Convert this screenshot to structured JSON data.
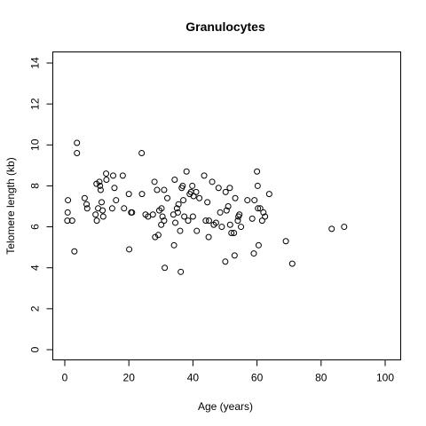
{
  "chart_data": {
    "type": "scatter",
    "title": "Granulocytes",
    "xlabel": "Age (years)",
    "ylabel": "Telomere length (kb)",
    "xlim": [
      0,
      100
    ],
    "ylim": [
      0,
      14
    ],
    "xticks": [
      0,
      20,
      40,
      60,
      80,
      100
    ],
    "yticks": [
      0,
      2,
      4,
      6,
      8,
      10,
      12,
      14
    ],
    "grid": false,
    "legend": "none",
    "points": [
      [
        0.8,
        6.3
      ],
      [
        0.9,
        6.7
      ],
      [
        1.0,
        7.3
      ],
      [
        2.3,
        6.3
      ],
      [
        3.0,
        4.8
      ],
      [
        3.8,
        10.1
      ],
      [
        3.8,
        9.6
      ],
      [
        6.2,
        7.4
      ],
      [
        6.8,
        7.1
      ],
      [
        7.0,
        6.9
      ],
      [
        9.6,
        6.6
      ],
      [
        9.9,
        8.1
      ],
      [
        10.0,
        6.3
      ],
      [
        10.4,
        6.9
      ],
      [
        10.8,
        8.2
      ],
      [
        11.0,
        8.0
      ],
      [
        11.2,
        7.8
      ],
      [
        11.5,
        7.2
      ],
      [
        11.8,
        6.8
      ],
      [
        12.0,
        6.5
      ],
      [
        12.9,
        8.6
      ],
      [
        13.0,
        8.3
      ],
      [
        14.8,
        6.9
      ],
      [
        15.1,
        8.5
      ],
      [
        15.5,
        7.9
      ],
      [
        16.0,
        7.3
      ],
      [
        18.1,
        8.5
      ],
      [
        18.5,
        6.9
      ],
      [
        20.0,
        7.6
      ],
      [
        20.1,
        4.9
      ],
      [
        20.7,
        6.7
      ],
      [
        21.0,
        6.7
      ],
      [
        24.0,
        9.6
      ],
      [
        24.1,
        7.6
      ],
      [
        25.2,
        6.6
      ],
      [
        26.0,
        6.5
      ],
      [
        27.5,
        6.6
      ],
      [
        28.0,
        8.2
      ],
      [
        28.2,
        5.5
      ],
      [
        28.8,
        7.8
      ],
      [
        29.2,
        5.6
      ],
      [
        29.5,
        6.8
      ],
      [
        30.1,
        6.1
      ],
      [
        30.2,
        6.9
      ],
      [
        30.5,
        6.5
      ],
      [
        31.0,
        7.8
      ],
      [
        31.0,
        6.3
      ],
      [
        31.2,
        4.0
      ],
      [
        32.0,
        7.4
      ],
      [
        33.9,
        6.6
      ],
      [
        34.1,
        5.1
      ],
      [
        34.3,
        8.3
      ],
      [
        34.5,
        6.2
      ],
      [
        35.0,
        6.9
      ],
      [
        35.3,
        6.7
      ],
      [
        35.5,
        7.1
      ],
      [
        36.0,
        5.8
      ],
      [
        36.2,
        3.8
      ],
      [
        36.5,
        7.9
      ],
      [
        36.8,
        8.0
      ],
      [
        37.0,
        7.3
      ],
      [
        37.3,
        6.5
      ],
      [
        38.0,
        8.7
      ],
      [
        38.5,
        6.3
      ],
      [
        39.0,
        7.6
      ],
      [
        39.4,
        7.7
      ],
      [
        39.8,
        8.0
      ],
      [
        40.0,
        6.5
      ],
      [
        40.2,
        7.5
      ],
      [
        41.0,
        7.7
      ],
      [
        41.2,
        5.8
      ],
      [
        42.0,
        7.4
      ],
      [
        43.5,
        8.5
      ],
      [
        44.0,
        6.3
      ],
      [
        44.5,
        7.2
      ],
      [
        44.9,
        5.5
      ],
      [
        45.0,
        6.3
      ],
      [
        46.0,
        8.2
      ],
      [
        46.5,
        6.1
      ],
      [
        47.2,
        6.2
      ],
      [
        48.0,
        7.9
      ],
      [
        48.5,
        6.7
      ],
      [
        49.0,
        6.0
      ],
      [
        50.1,
        4.3
      ],
      [
        50.2,
        7.7
      ],
      [
        50.5,
        6.8
      ],
      [
        51.0,
        7.0
      ],
      [
        51.5,
        7.9
      ],
      [
        51.6,
        6.1
      ],
      [
        52.0,
        5.7
      ],
      [
        52.8,
        5.7
      ],
      [
        53.0,
        4.6
      ],
      [
        53.2,
        7.4
      ],
      [
        54.0,
        6.3
      ],
      [
        54.2,
        6.5
      ],
      [
        54.5,
        6.6
      ],
      [
        55.0,
        6.0
      ],
      [
        57.0,
        7.3
      ],
      [
        58.5,
        6.4
      ],
      [
        59.0,
        4.7
      ],
      [
        59.2,
        7.3
      ],
      [
        60.0,
        8.7
      ],
      [
        60.2,
        8.0
      ],
      [
        60.3,
        6.9
      ],
      [
        60.5,
        5.1
      ],
      [
        61.0,
        6.9
      ],
      [
        61.6,
        6.3
      ],
      [
        62.0,
        6.7
      ],
      [
        62.5,
        6.5
      ],
      [
        63.8,
        7.6
      ],
      [
        69.0,
        5.3
      ],
      [
        71.0,
        4.2
      ],
      [
        83.3,
        5.9
      ],
      [
        87.2,
        6.0
      ]
    ]
  }
}
